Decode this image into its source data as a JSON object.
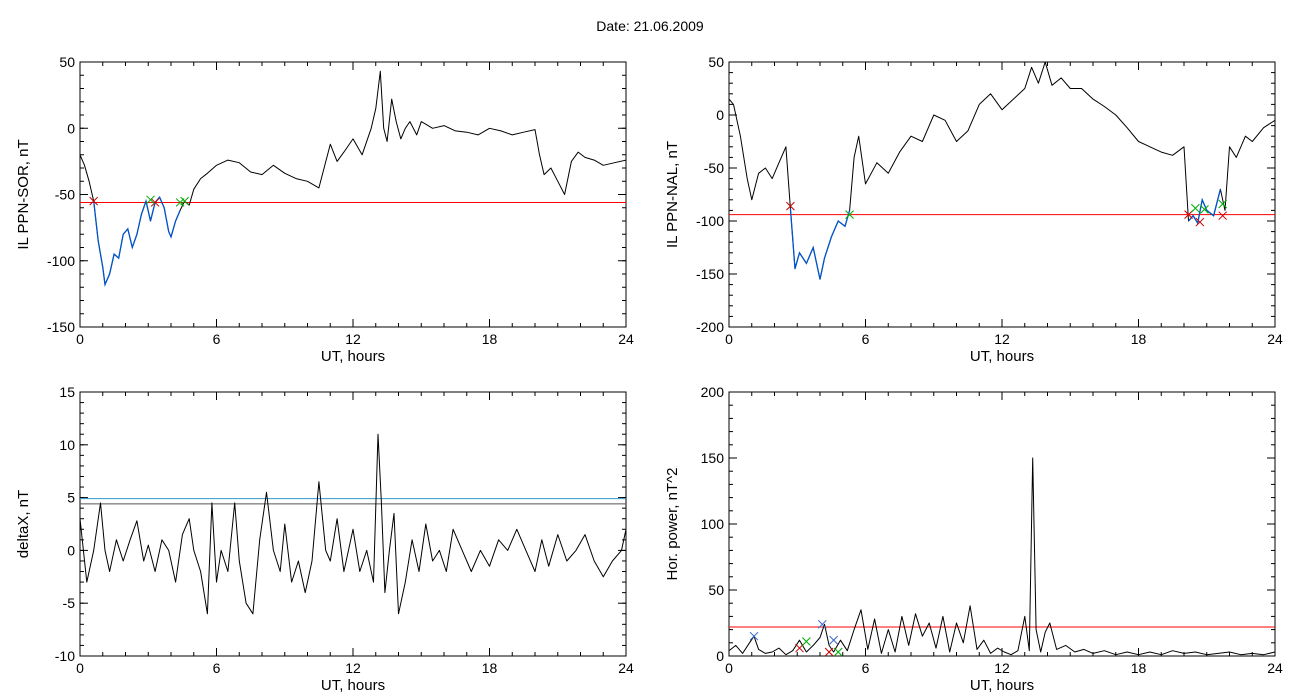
{
  "figure": {
    "title": "Date:  21.06.2009"
  },
  "chart_data": [
    {
      "id": "il-ppn-sor",
      "type": "line",
      "ylabel": "IL PPN-SOR, nT",
      "xlabel": "UT, hours",
      "xlim": [
        0,
        24
      ],
      "ylim": [
        -150,
        50
      ],
      "xticks": [
        0,
        6,
        12,
        18,
        24
      ],
      "xtick_labels": [
        "0",
        "6",
        "12",
        "18",
        "24"
      ],
      "yticks": [
        -150,
        -100,
        -50,
        0,
        50
      ],
      "ytick_labels": [
        "-150",
        "-100",
        "-50",
        "0",
        "50"
      ],
      "threshold": {
        "y": -56,
        "color": "#ff0000"
      },
      "highlight": {
        "ranges": [
          [
            0.6,
            4.5
          ]
        ],
        "color": "#0055cc"
      },
      "series": [
        {
          "color": "#000000",
          "x": [
            0,
            0.2,
            0.4,
            0.6,
            0.8,
            1.0,
            1.1,
            1.3,
            1.5,
            1.7,
            1.9,
            2.1,
            2.3,
            2.5,
            2.7,
            2.9,
            3.1,
            3.3,
            3.5,
            3.7,
            3.9,
            4.0,
            4.2,
            4.4,
            4.6,
            4.8,
            5.0,
            5.3,
            5.6,
            6.0,
            6.5,
            7.0,
            7.5,
            8.0,
            8.5,
            9.0,
            9.5,
            10.0,
            10.5,
            11.0,
            11.3,
            11.6,
            12.0,
            12.4,
            12.8,
            13.0,
            13.2,
            13.35,
            13.5,
            13.7,
            13.9,
            14.1,
            14.3,
            14.5,
            14.8,
            15.0,
            15.5,
            16.0,
            16.5,
            17.0,
            17.5,
            18.0,
            18.5,
            19.0,
            19.5,
            20.0,
            20.2,
            20.4,
            20.7,
            21.0,
            21.3,
            21.6,
            21.9,
            22.2,
            22.6,
            23.0,
            23.5,
            24.0
          ],
          "y": [
            -20,
            -28,
            -40,
            -55,
            -85,
            -105,
            -118,
            -110,
            -95,
            -98,
            -80,
            -76,
            -90,
            -80,
            -65,
            -55,
            -70,
            -56,
            -52,
            -60,
            -78,
            -82,
            -70,
            -62,
            -55,
            -58,
            -46,
            -38,
            -34,
            -28,
            -24,
            -26,
            -33,
            -35,
            -28,
            -34,
            -38,
            -40,
            -45,
            -12,
            -25,
            -18,
            -8,
            -20,
            0,
            15,
            43,
            0,
            -10,
            22,
            5,
            -8,
            0,
            5,
            -5,
            5,
            0,
            2,
            -2,
            -3,
            -5,
            0,
            -2,
            -5,
            -3,
            -1,
            -20,
            -35,
            -30,
            -40,
            -50,
            -25,
            -18,
            -22,
            -24,
            -28,
            -26,
            -24
          ]
        }
      ],
      "markers": [
        {
          "x": 0.6,
          "y": -55,
          "color": "#cc0000"
        },
        {
          "x": 3.3,
          "y": -56,
          "color": "#cc0000"
        },
        {
          "x": 3.1,
          "y": -54,
          "color": "#00aa00"
        },
        {
          "x": 4.4,
          "y": -56,
          "color": "#00aa00"
        },
        {
          "x": 4.6,
          "y": -55,
          "color": "#00aa00"
        }
      ]
    },
    {
      "id": "il-ppn-nal",
      "type": "line",
      "ylabel": "IL PPN-NAL, nT",
      "xlabel": "UT, hours",
      "xlim": [
        0,
        24
      ],
      "ylim": [
        -200,
        50
      ],
      "xticks": [
        0,
        6,
        12,
        18,
        24
      ],
      "xtick_labels": [
        "0",
        "6",
        "12",
        "18",
        "24"
      ],
      "yticks": [
        -200,
        -150,
        -100,
        -50,
        0,
        50
      ],
      "ytick_labels": [
        "-200",
        "-150",
        "-100",
        "-50",
        "0",
        "50"
      ],
      "threshold": {
        "y": -94,
        "color": "#ff0000"
      },
      "highlight": {
        "ranges": [
          [
            2.7,
            5.3
          ],
          [
            20.2,
            21.7
          ]
        ],
        "color": "#0055cc"
      },
      "series": [
        {
          "color": "#000000",
          "x": [
            0,
            0.2,
            0.5,
            0.8,
            1.0,
            1.3,
            1.6,
            1.9,
            2.2,
            2.5,
            2.7,
            2.9,
            3.1,
            3.4,
            3.7,
            4.0,
            4.2,
            4.5,
            4.8,
            5.1,
            5.3,
            5.5,
            5.7,
            6.0,
            6.5,
            7.0,
            7.5,
            8.0,
            8.5,
            9.0,
            9.5,
            10.0,
            10.5,
            11.0,
            11.5,
            12.0,
            12.5,
            13.0,
            13.3,
            13.6,
            13.9,
            14.2,
            14.6,
            15.0,
            15.5,
            16.0,
            16.5,
            17.0,
            17.5,
            18.0,
            18.5,
            19.0,
            19.5,
            20.0,
            20.2,
            20.4,
            20.6,
            20.8,
            21.0,
            21.3,
            21.6,
            21.8,
            22.0,
            22.3,
            22.7,
            23.0,
            23.5,
            24.0
          ],
          "y": [
            15,
            10,
            -20,
            -60,
            -80,
            -55,
            -50,
            -60,
            -45,
            -30,
            -88,
            -145,
            -130,
            -140,
            -125,
            -155,
            -135,
            -115,
            -100,
            -105,
            -90,
            -40,
            -20,
            -65,
            -45,
            -55,
            -35,
            -20,
            -25,
            0,
            -5,
            -25,
            -15,
            10,
            20,
            5,
            15,
            25,
            45,
            30,
            50,
            28,
            35,
            25,
            25,
            15,
            8,
            0,
            -12,
            -25,
            -30,
            -35,
            -38,
            -30,
            -100,
            -95,
            -102,
            -80,
            -90,
            -95,
            -70,
            -90,
            -30,
            -40,
            -20,
            -25,
            -12,
            -5
          ]
        }
      ],
      "markers": [
        {
          "x": 2.7,
          "y": -86,
          "color": "#cc0000"
        },
        {
          "x": 5.3,
          "y": -94,
          "color": "#00aa00"
        },
        {
          "x": 20.2,
          "y": -94,
          "color": "#cc0000"
        },
        {
          "x": 20.5,
          "y": -88,
          "color": "#00aa00"
        },
        {
          "x": 20.7,
          "y": -101,
          "color": "#cc0000"
        },
        {
          "x": 20.9,
          "y": -89,
          "color": "#00aa00"
        },
        {
          "x": 21.7,
          "y": -84,
          "color": "#00aa00"
        },
        {
          "x": 21.7,
          "y": -95,
          "color": "#cc0000"
        }
      ]
    },
    {
      "id": "deltax",
      "type": "line",
      "ylabel": "deltaX, nT",
      "xlabel": "UT, hours",
      "xlim": [
        0,
        24
      ],
      "ylim": [
        -10,
        15
      ],
      "xticks": [
        0,
        6,
        12,
        18,
        24
      ],
      "xtick_labels": [
        "0",
        "6",
        "12",
        "18",
        "24"
      ],
      "yticks": [
        -10,
        -5,
        0,
        5,
        10,
        15
      ],
      "ytick_labels": [
        "-10",
        "-5",
        "0",
        "5",
        "10",
        "15"
      ],
      "thresholds": [
        {
          "y": 4.9,
          "color": "#3399cc"
        },
        {
          "y": 4.4,
          "color": "#555555"
        }
      ],
      "series": [
        {
          "color": "#000000",
          "x": [
            0,
            0.3,
            0.6,
            0.9,
            1.1,
            1.3,
            1.6,
            1.9,
            2.2,
            2.5,
            2.8,
            3.0,
            3.3,
            3.6,
            3.9,
            4.2,
            4.5,
            4.8,
            5.0,
            5.3,
            5.6,
            5.8,
            6.0,
            6.2,
            6.5,
            6.8,
            7.0,
            7.3,
            7.6,
            7.9,
            8.2,
            8.5,
            8.8,
            9.0,
            9.3,
            9.6,
            9.9,
            10.2,
            10.5,
            10.8,
            11.0,
            11.3,
            11.6,
            12.0,
            12.3,
            12.6,
            12.9,
            13.1,
            13.25,
            13.4,
            13.6,
            13.8,
            14.0,
            14.3,
            14.6,
            14.9,
            15.2,
            15.5,
            15.8,
            16.1,
            16.4,
            16.8,
            17.2,
            17.6,
            18.0,
            18.4,
            18.8,
            19.2,
            19.6,
            20.0,
            20.3,
            20.6,
            21.0,
            21.4,
            21.8,
            22.2,
            22.6,
            23.0,
            23.4,
            23.8,
            24.0
          ],
          "y": [
            3,
            -3,
            0,
            4.5,
            0,
            -2,
            1,
            -1,
            1,
            2.8,
            -1,
            0.5,
            -2,
            1,
            0,
            -3,
            1.5,
            3,
            0,
            -2,
            -6,
            4.5,
            -3,
            0,
            -2,
            4.5,
            -1,
            -5,
            -6,
            1,
            5.5,
            0,
            -2,
            2.5,
            -3,
            -1,
            -4,
            -1,
            6.5,
            0,
            -1,
            3,
            -2,
            2,
            -2,
            0,
            -3,
            11,
            4.5,
            -4,
            0,
            3.5,
            -6,
            -3,
            1,
            -2,
            2.5,
            -1,
            0,
            -2,
            2,
            0,
            -2,
            0,
            -1.5,
            1,
            0,
            2,
            0,
            -2,
            1,
            -1.5,
            1.5,
            -1,
            0,
            1.5,
            -1,
            -2.5,
            -1,
            0,
            2
          ]
        }
      ]
    },
    {
      "id": "hor-power",
      "type": "line",
      "ylabel": "Hor. power, nT^2",
      "xlabel": "UT, hours",
      "xlim": [
        0,
        24
      ],
      "ylim": [
        0,
        200
      ],
      "xticks": [
        0,
        6,
        12,
        18,
        24
      ],
      "xtick_labels": [
        "0",
        "6",
        "12",
        "18",
        "24"
      ],
      "yticks": [
        0,
        50,
        100,
        150,
        200
      ],
      "ytick_labels": [
        "0",
        "50",
        "100",
        "150",
        "200"
      ],
      "threshold": {
        "y": 22,
        "color": "#ff0000"
      },
      "series": [
        {
          "color": "#000000",
          "x": [
            0,
            0.3,
            0.6,
            0.9,
            1.1,
            1.3,
            1.6,
            1.9,
            2.2,
            2.5,
            2.8,
            3.1,
            3.4,
            3.7,
            4.0,
            4.2,
            4.4,
            4.6,
            4.9,
            5.2,
            5.5,
            5.8,
            6.1,
            6.4,
            6.7,
            7.0,
            7.3,
            7.6,
            7.9,
            8.2,
            8.5,
            8.8,
            9.1,
            9.4,
            9.7,
            10.0,
            10.3,
            10.6,
            10.9,
            11.2,
            11.5,
            11.8,
            12.1,
            12.4,
            12.7,
            13.0,
            13.2,
            13.35,
            13.5,
            13.7,
            13.9,
            14.1,
            14.4,
            14.8,
            15.2,
            15.6,
            16.0,
            16.5,
            17.0,
            17.5,
            18.0,
            18.5,
            19.0,
            19.5,
            20.0,
            20.5,
            21.0,
            21.5,
            22.0,
            22.5,
            23.0,
            23.5,
            24.0
          ],
          "y": [
            4,
            8,
            2,
            10,
            15,
            5,
            2,
            3,
            6,
            1,
            4,
            12,
            3,
            8,
            14,
            24,
            8,
            3,
            12,
            4,
            20,
            35,
            5,
            28,
            2,
            20,
            3,
            30,
            8,
            32,
            15,
            25,
            6,
            30,
            3,
            25,
            10,
            38,
            5,
            12,
            2,
            6,
            3,
            1,
            4,
            30,
            4,
            150,
            20,
            3,
            18,
            25,
            5,
            8,
            3,
            5,
            2,
            4,
            1,
            3,
            1,
            3,
            1,
            4,
            2,
            3,
            1,
            2,
            3,
            1,
            2,
            1,
            3
          ]
        }
      ],
      "markers": [
        {
          "x": 1.1,
          "y": 15,
          "color": "#3366cc"
        },
        {
          "x": 3.1,
          "y": 6,
          "color": "#cc0000"
        },
        {
          "x": 3.4,
          "y": 11,
          "color": "#00aa00"
        },
        {
          "x": 4.1,
          "y": 24,
          "color": "#3366cc"
        },
        {
          "x": 4.4,
          "y": 3,
          "color": "#cc0000"
        },
        {
          "x": 4.6,
          "y": 12,
          "color": "#3366cc"
        },
        {
          "x": 4.8,
          "y": 3,
          "color": "#00aa00"
        }
      ]
    }
  ]
}
